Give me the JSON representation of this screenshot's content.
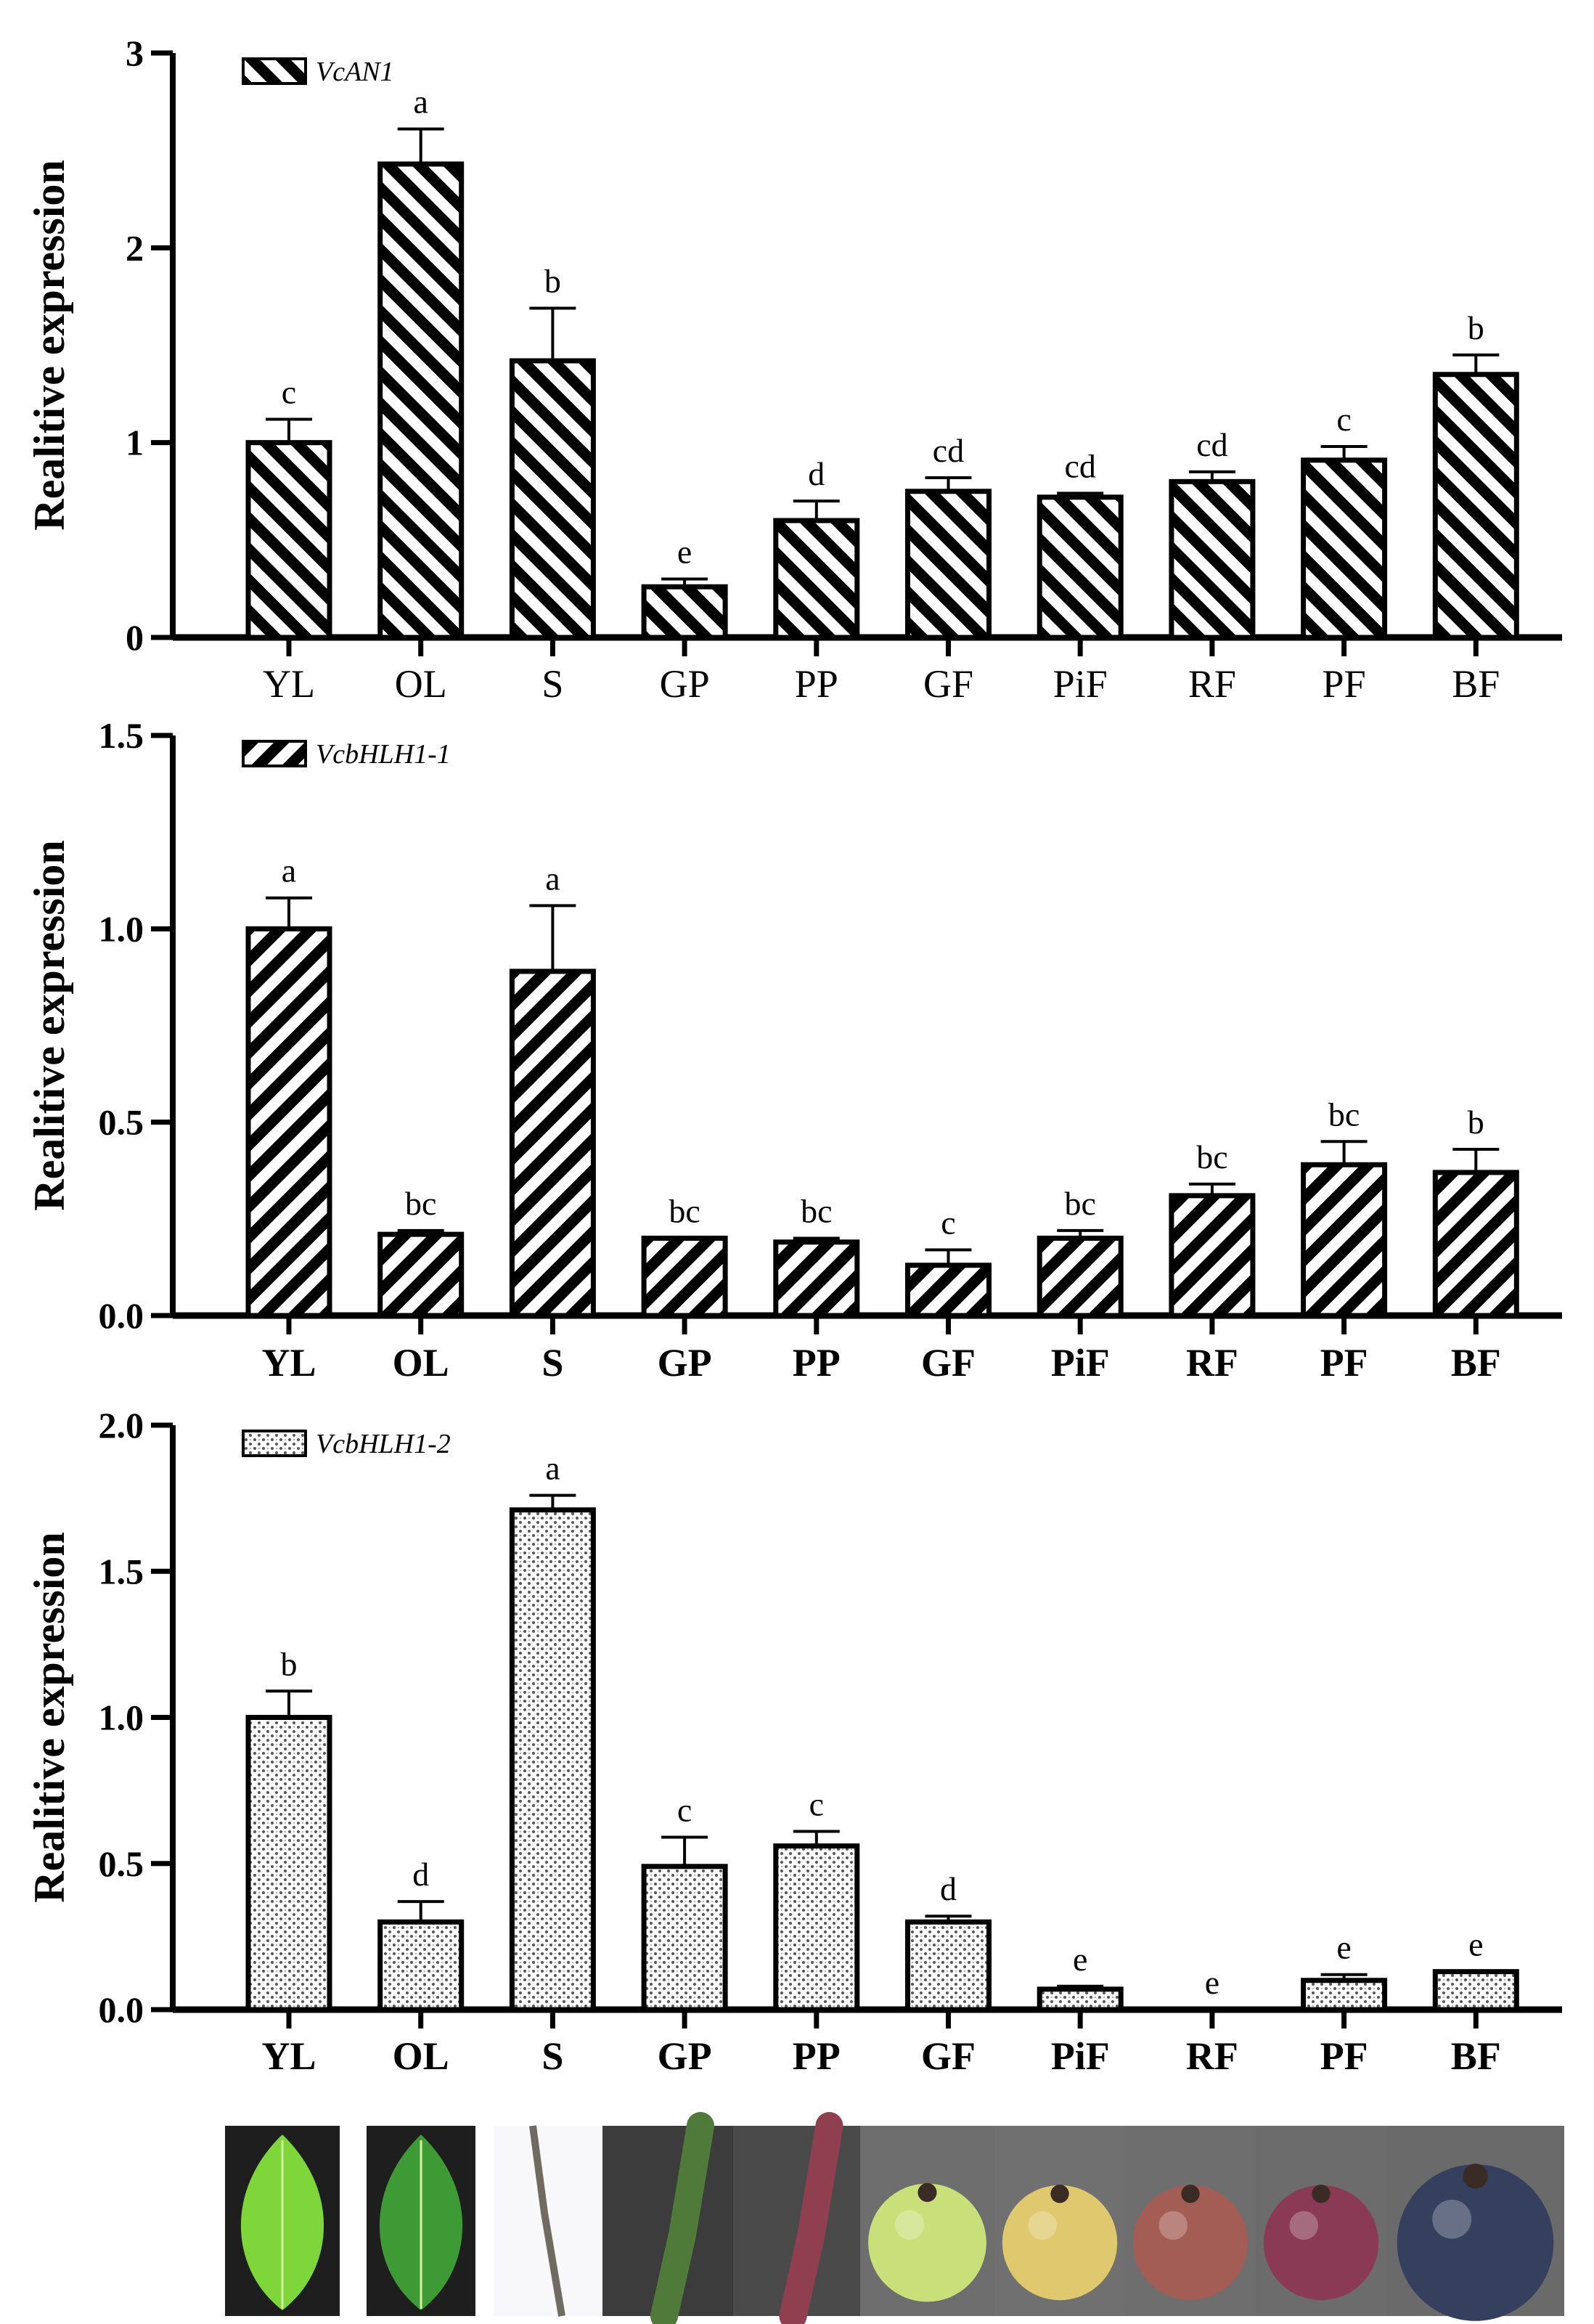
{
  "chart_data": [
    {
      "type": "bar",
      "legend": "VcAN1",
      "pattern": "diag-back",
      "ylabel": "Realitive expression",
      "ylim": [
        0,
        3
      ],
      "yticks": [
        "0",
        "1",
        "2",
        "3"
      ],
      "categories": [
        "YL",
        "OL",
        "S",
        "GP",
        "PP",
        "GF",
        "PiF",
        "RF",
        "PF",
        "BF"
      ],
      "values": [
        1.0,
        2.43,
        1.42,
        0.26,
        0.6,
        0.75,
        0.72,
        0.8,
        0.91,
        1.35
      ],
      "errors": [
        0.12,
        0.18,
        0.27,
        0.04,
        0.1,
        0.07,
        0.02,
        0.05,
        0.07,
        0.1
      ],
      "significance": [
        "c",
        "a",
        "b",
        "e",
        "d",
        "cd",
        "cd",
        "cd",
        "c",
        "b"
      ],
      "category_bold": false
    },
    {
      "type": "bar",
      "legend": "VcbHLH1-1",
      "pattern": "diag-fwd",
      "ylabel": "Realitive expression",
      "ylim": [
        0,
        1.5
      ],
      "yticks": [
        "0.0",
        "0.5",
        "1.0",
        "1.5"
      ],
      "categories": [
        "YL",
        "OL",
        "S",
        "GP",
        "PP",
        "GF",
        "PiF",
        "RF",
        "PF",
        "BF"
      ],
      "values": [
        1.0,
        0.21,
        0.89,
        0.2,
        0.19,
        0.13,
        0.2,
        0.31,
        0.39,
        0.37
      ],
      "errors": [
        0.08,
        0.01,
        0.17,
        0.0,
        0.01,
        0.04,
        0.02,
        0.03,
        0.06,
        0.06
      ],
      "significance": [
        "a",
        "bc",
        "a",
        "bc",
        "bc",
        "c",
        "bc",
        "bc",
        "bc",
        "b"
      ],
      "category_bold": true
    },
    {
      "type": "bar",
      "legend": "VcbHLH1-2",
      "pattern": "dots",
      "ylabel": "Realitive expression",
      "ylim": [
        0,
        2
      ],
      "yticks": [
        "0.0",
        "0.5",
        "1.0",
        "1.5",
        "2.0"
      ],
      "categories": [
        "YL",
        "OL",
        "S",
        "GP",
        "PP",
        "GF",
        "PiF",
        "RF",
        "PF",
        "BF"
      ],
      "values": [
        1.0,
        0.3,
        1.71,
        0.49,
        0.56,
        0.3,
        0.07,
        0.0,
        0.1,
        0.13
      ],
      "errors": [
        0.09,
        0.07,
        0.05,
        0.1,
        0.05,
        0.02,
        0.01,
        0.0,
        0.02,
        0.0
      ],
      "significance": [
        "b",
        "d",
        "a",
        "c",
        "c",
        "d",
        "e",
        "e",
        "e",
        "e"
      ],
      "category_bold": true
    }
  ],
  "photos": [
    {
      "name": "YL",
      "kind": "leaf",
      "bg": "#1e1e1e",
      "color": "#7fd63a"
    },
    {
      "name": "OL",
      "kind": "leaf",
      "bg": "#1e1e1e",
      "color": "#3e9a35"
    },
    {
      "name": "S",
      "kind": "stem",
      "bg": "#f8f8fa",
      "color": "#6f6b60"
    },
    {
      "name": "GP",
      "kind": "pedicel",
      "bg": "#3c3c3c",
      "color": "#4f7a3a"
    },
    {
      "name": "PP",
      "kind": "pedicel",
      "bg": "#4a4a4a",
      "color": "#8f3f4f"
    },
    {
      "name": "GF",
      "kind": "fruit",
      "bg": "#6e6e6e",
      "color": "#c9e07a"
    },
    {
      "name": "PiF",
      "kind": "fruit",
      "bg": "#707070",
      "color": "#dfc86e"
    },
    {
      "name": "RF",
      "kind": "fruit",
      "bg": "#6e6e6e",
      "color": "#a45d55"
    },
    {
      "name": "PF",
      "kind": "fruit",
      "bg": "#6c6c6c",
      "color": "#8a3a55"
    },
    {
      "name": "BF",
      "kind": "fruit",
      "bg": "#6a6a6a",
      "color": "#34405e"
    }
  ]
}
